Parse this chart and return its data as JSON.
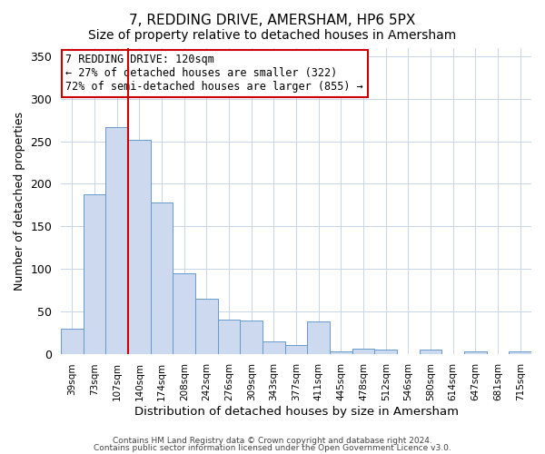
{
  "title": "7, REDDING DRIVE, AMERSHAM, HP6 5PX",
  "subtitle": "Size of property relative to detached houses in Amersham",
  "xlabel": "Distribution of detached houses by size in Amersham",
  "ylabel": "Number of detached properties",
  "bar_labels": [
    "39sqm",
    "73sqm",
    "107sqm",
    "140sqm",
    "174sqm",
    "208sqm",
    "242sqm",
    "276sqm",
    "309sqm",
    "343sqm",
    "377sqm",
    "411sqm",
    "445sqm",
    "478sqm",
    "512sqm",
    "546sqm",
    "580sqm",
    "614sqm",
    "647sqm",
    "681sqm",
    "715sqm"
  ],
  "bar_values": [
    30,
    187,
    267,
    252,
    178,
    95,
    65,
    40,
    39,
    14,
    10,
    38,
    3,
    6,
    5,
    0,
    5,
    0,
    3,
    0,
    3
  ],
  "bar_color": "#ccd9ee",
  "bar_edge_color": "#6699cc",
  "vline_x": 2.5,
  "vline_color": "#cc0000",
  "ylim": [
    0,
    360
  ],
  "yticks": [
    0,
    50,
    100,
    150,
    200,
    250,
    300,
    350
  ],
  "annotation_title": "7 REDDING DRIVE: 120sqm",
  "annotation_line1": "← 27% of detached houses are smaller (322)",
  "annotation_line2": "72% of semi-detached houses are larger (855) →",
  "annotation_box_color": "#ffffff",
  "annotation_box_edge": "#cc0000",
  "footer1": "Contains HM Land Registry data © Crown copyright and database right 2024.",
  "footer2": "Contains public sector information licensed under the Open Government Licence v3.0.",
  "bg_color": "#ffffff",
  "title_fontsize": 11,
  "subtitle_fontsize": 10,
  "grid_color": "#c8d4e8"
}
